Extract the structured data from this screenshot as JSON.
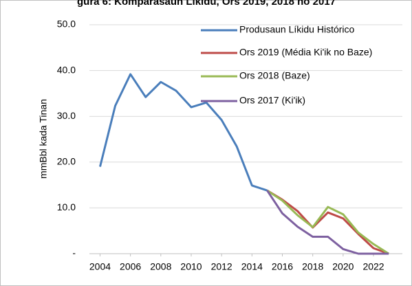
{
  "chart_data": {
    "type": "line",
    "title": "gura 6: Komparasaun Líkidu, Ors 2019, 2018 no 2017",
    "y_label": "mmBbl kada Tinan",
    "x": [
      2004,
      2005,
      2006,
      2007,
      2008,
      2009,
      2010,
      2011,
      2012,
      2013,
      2014,
      2015,
      2016,
      2017,
      2018,
      2019,
      2020,
      2021,
      2022,
      2023
    ],
    "series": [
      {
        "name": "Produsaun Líkidu Histórico",
        "color": "#4a7ebb",
        "values": [
          19.0,
          32.3,
          39.2,
          34.2,
          37.5,
          35.6,
          32.0,
          33.0,
          29.2,
          23.4,
          14.9,
          13.8,
          null,
          null,
          null,
          null,
          null,
          null,
          null,
          null
        ]
      },
      {
        "name": "Ors 2019 (Média Ki'ik no Baze)",
        "color": "#be4b48",
        "values": [
          null,
          null,
          null,
          null,
          null,
          null,
          null,
          null,
          null,
          null,
          null,
          13.8,
          11.8,
          9.3,
          5.7,
          9.0,
          7.7,
          4.3,
          1.2,
          0
        ]
      },
      {
        "name": "Ors 2018 (Baze)",
        "color": "#98b954",
        "values": [
          null,
          null,
          null,
          null,
          null,
          null,
          null,
          null,
          null,
          null,
          null,
          13.8,
          11.6,
          8.4,
          5.8,
          10.2,
          8.6,
          4.6,
          2.1,
          0
        ]
      },
      {
        "name": "Ors 2017 (Ki'ik)",
        "color": "#7d60a0",
        "values": [
          null,
          null,
          null,
          null,
          null,
          null,
          null,
          null,
          null,
          null,
          null,
          13.8,
          8.8,
          5.9,
          3.7,
          3.7,
          1.0,
          0,
          0,
          0
        ]
      }
    ],
    "xlim": [
      2003.3,
      2023.9
    ],
    "xticks": [
      2004,
      2006,
      2008,
      2010,
      2012,
      2014,
      2016,
      2018,
      2020,
      2022
    ],
    "ylim": [
      0,
      50
    ],
    "yticks": [
      {
        "value": 0,
        "label": "-"
      },
      {
        "value": 10,
        "label": "10.0"
      },
      {
        "value": 20,
        "label": "20.0"
      },
      {
        "value": 30,
        "label": "30.0"
      },
      {
        "value": 40,
        "label": "40.0"
      },
      {
        "value": 50,
        "label": "50.0"
      }
    ],
    "grid": true,
    "legend": "upper right"
  }
}
